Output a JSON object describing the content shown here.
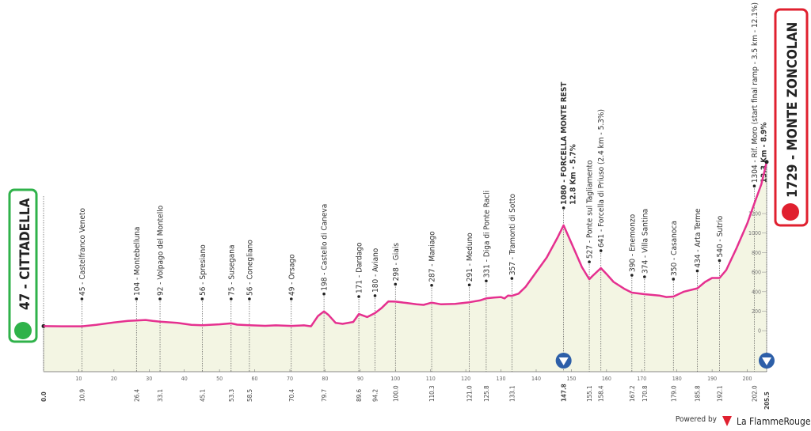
{
  "chart_data": {
    "type": "profile",
    "start_label": "47 - CITTADELLA",
    "finish_label": "1729 - MONTE ZONCOLAN",
    "start_km": {
      "value": 0,
      "label": "0.0"
    },
    "finish_km": 205.5,
    "x": [
      0,
      5,
      10.9,
      15,
      20,
      24,
      26.4,
      29,
      31,
      33.1,
      38,
      42,
      45.1,
      50,
      53.3,
      55,
      58.5,
      63,
      66,
      70.4,
      74,
      76,
      78,
      79.7,
      81,
      83,
      85,
      88,
      89.6,
      92,
      94.2,
      96,
      98,
      100,
      103,
      106,
      108,
      110.3,
      113,
      117,
      121,
      124,
      125.8,
      128,
      130,
      131,
      132,
      133.1,
      135,
      137,
      140,
      143,
      146,
      147.8,
      150,
      153,
      155.1,
      156,
      158.4,
      160,
      162,
      165,
      167.2,
      170.8,
      175,
      177,
      179,
      182,
      185.8,
      188,
      190,
      192.1,
      194,
      197,
      200,
      202,
      204,
      205.5
    ],
    "y": [
      47,
      45,
      45,
      60,
      85,
      100,
      104,
      110,
      100,
      92,
      80,
      60,
      56,
      65,
      75,
      62,
      56,
      50,
      55,
      49,
      55,
      45,
      150,
      198,
      160,
      80,
      70,
      90,
      171,
      140,
      180,
      230,
      300,
      298,
      285,
      270,
      265,
      287,
      270,
      275,
      291,
      310,
      331,
      340,
      345,
      330,
      360,
      357,
      380,
      450,
      600,
      750,
      950,
      1080,
      900,
      650,
      527,
      560,
      641,
      580,
      500,
      430,
      390,
      374,
      360,
      345,
      350,
      400,
      434,
      500,
      540,
      540,
      620,
      850,
      1100,
      1304,
      1500,
      1729
    ],
    "xlim": [
      0,
      205.5
    ],
    "ylim": [
      -420,
      1800
    ],
    "xticks": [
      10,
      20,
      30,
      40,
      50,
      60,
      70,
      80,
      90,
      100,
      110,
      120,
      130,
      140,
      150,
      160,
      170,
      180,
      190,
      200
    ],
    "yticks": [
      0,
      200,
      400,
      600,
      800,
      1000,
      1200
    ],
    "line_color": "#e5308f",
    "fill_color": "#f3f5e3",
    "waypoints": [
      {
        "label": "45 - Castelfranco Veneto",
        "km": 10.9
      },
      {
        "label": "104 - Montebelluna",
        "km": 26.4
      },
      {
        "label": "92 - Volpago del Montello",
        "km": 33.1
      },
      {
        "label": "56 - Spresiano",
        "km": 45.1
      },
      {
        "label": "75 - Susegana",
        "km": 53.3
      },
      {
        "label": "56 - Conegliano",
        "km": 58.5
      },
      {
        "label": "49 - Orsago",
        "km": 70.4
      },
      {
        "label": "198 - Castello di Caneva",
        "km": 79.7
      },
      {
        "label": "171 - Dardago",
        "km": 89.6
      },
      {
        "label": "180 - Aviano",
        "km": 94.2
      },
      {
        "label": "298 - Giais",
        "km": {
          "value": 100,
          "label": "100.0"
        }
      },
      {
        "label": "287 - Maniago",
        "km": 110.3
      },
      {
        "label": "291 - Meduno",
        "km": {
          "value": 121,
          "label": "121.0"
        }
      },
      {
        "label": "331 - Diga di Ponte Racli",
        "km": 125.8
      },
      {
        "label": "357 - Tramonti di Sotto",
        "km": 133.1
      },
      {
        "label": "1080 - FORCELLA MONTE REST",
        "sub": "12.8 Km - 5.7%",
        "km": 147.8,
        "kom": true
      },
      {
        "label": "527 - Ponte sul Tagliamento",
        "km": 155.1
      },
      {
        "label": "641 - Forcella di Priuso (2.4 km - 5.3%)",
        "km": 158.4
      },
      {
        "label": "390 - Enemonzo",
        "km": 167.2
      },
      {
        "label": "374 - Villa Santina",
        "km": 170.8
      },
      {
        "label": "350 - Casanoca",
        "km": {
          "value": 179,
          "label": "179.0"
        }
      },
      {
        "label": "434 - Arta Terme",
        "km": 185.8
      },
      {
        "label": "540 - Sutrio",
        "km": 192.1
      },
      {
        "label": "1304 - Rif. Moro (start final ramp - 3.5 km - 12.1%)",
        "sub": "13.3 Km - 8.9%",
        "km": {
          "value": 202,
          "label": "202.0"
        }
      }
    ],
    "powered_by": "Powered by",
    "brand": "La FlammeRouge"
  }
}
